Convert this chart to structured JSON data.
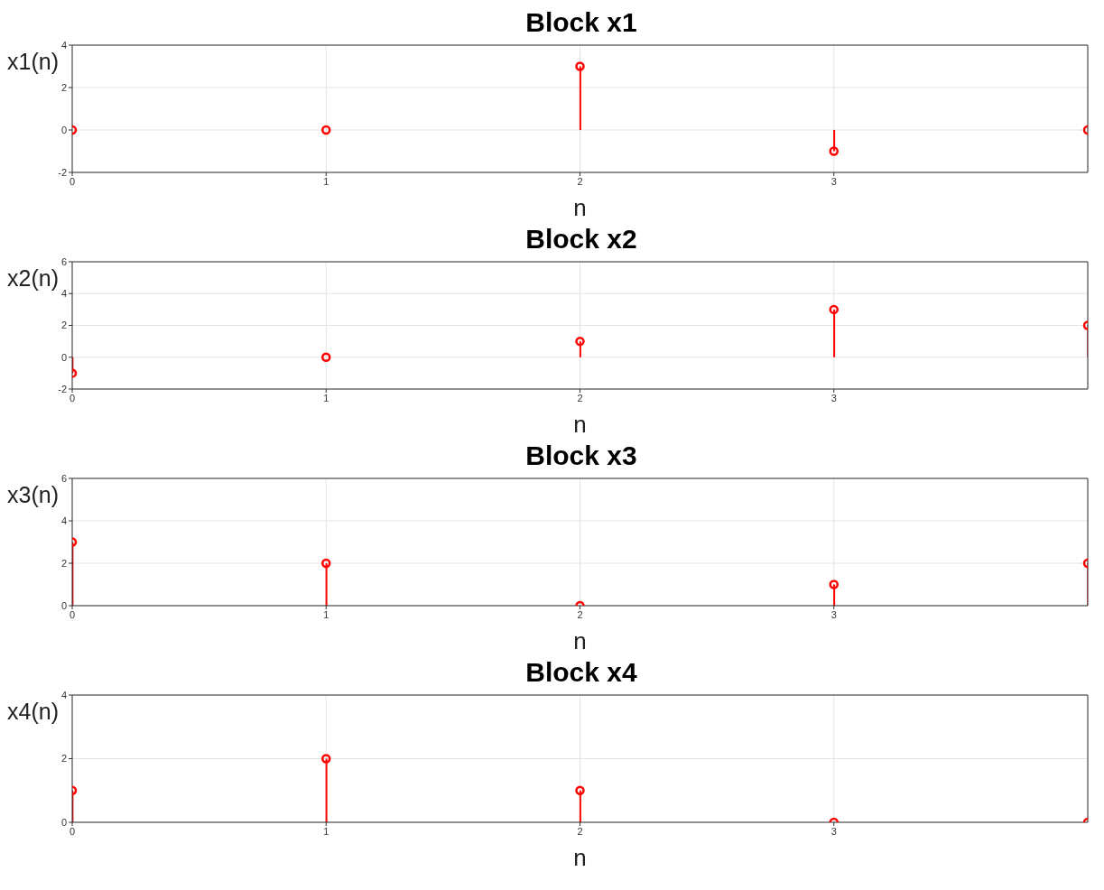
{
  "chart_data": [
    {
      "type": "lollipop",
      "title": "Block x1",
      "xlabel": "n",
      "ylabel": "x1(n)",
      "x": [
        0,
        1,
        2,
        3,
        4
      ],
      "values": [
        0,
        0,
        3,
        -1,
        0
      ],
      "color": "#ff0000",
      "marker": "circle",
      "xlim": [
        0,
        4
      ],
      "xticks": [
        0,
        1,
        2,
        3
      ],
      "ylim": [
        -2,
        4
      ],
      "yticks": [
        -2,
        0,
        2,
        4
      ],
      "grid": true
    },
    {
      "type": "lollipop",
      "title": "Block x2",
      "xlabel": "n",
      "ylabel": "x2(n)",
      "x": [
        0,
        1,
        2,
        3,
        4
      ],
      "values": [
        -1,
        0,
        1,
        3,
        2
      ],
      "color": "#ff0000",
      "marker": "circle",
      "xlim": [
        0,
        4
      ],
      "xticks": [
        0,
        1,
        2,
        3
      ],
      "ylim": [
        -2,
        6
      ],
      "yticks": [
        -2,
        0,
        2,
        4,
        6
      ],
      "grid": true
    },
    {
      "type": "lollipop",
      "title": "Block x3",
      "xlabel": "n",
      "ylabel": "x3(n)",
      "x": [
        0,
        1,
        2,
        3,
        4
      ],
      "values": [
        3,
        2,
        0,
        1,
        2
      ],
      "color": "#ff0000",
      "marker": "circle",
      "xlim": [
        0,
        4
      ],
      "xticks": [
        0,
        1,
        2,
        3
      ],
      "ylim": [
        0,
        6
      ],
      "yticks": [
        0,
        2,
        4,
        6
      ],
      "grid": true
    },
    {
      "type": "lollipop",
      "title": "Block x4",
      "xlabel": "n",
      "ylabel": "x4(n)",
      "x": [
        0,
        1,
        2,
        3,
        4
      ],
      "values": [
        1,
        2,
        1,
        0,
        0
      ],
      "color": "#ff0000",
      "marker": "circle",
      "xlim": [
        0,
        4
      ],
      "xticks": [
        0,
        1,
        2,
        3
      ],
      "ylim": [
        0,
        4
      ],
      "yticks": [
        0,
        2,
        4
      ],
      "grid": true
    }
  ]
}
